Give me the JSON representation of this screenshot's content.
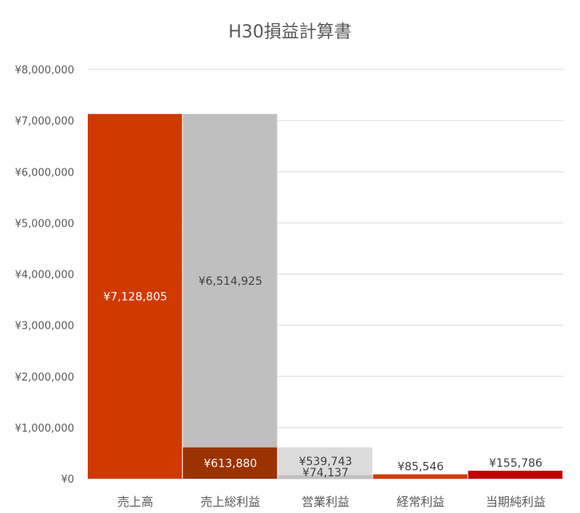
{
  "chart_data": {
    "type": "bar",
    "title": "H30損益計算書",
    "categories": [
      "売上高",
      "売上総利益",
      "営業利益",
      "経常利益",
      "当期純利益"
    ],
    "y_ticks": [
      "¥0",
      "¥1,000,000",
      "¥2,000,000",
      "¥3,000,000",
      "¥4,000,000",
      "¥5,000,000",
      "¥6,000,000",
      "¥7,000,000",
      "¥8,000,000"
    ],
    "ylim": [
      0,
      8000000
    ],
    "grid": true,
    "legend": "none",
    "stacking": "stacked",
    "segments": [
      {
        "category": "売上高",
        "value": 7128805,
        "label": "¥7,128,805",
        "color": "#d03a00",
        "label_color": "#ffffff",
        "label_pos": "center"
      },
      {
        "category": "売上総利益",
        "value": 613880,
        "label": "¥613,880",
        "color": "#9c3200",
        "label_color": "#ffffff",
        "label_pos": "center"
      },
      {
        "category": "売上総利益",
        "value": 6514925,
        "label": "¥6,514,925",
        "color": "#bfbfbf",
        "label_color": "#404040",
        "label_pos": "center"
      },
      {
        "category": "営業利益",
        "value": 74137,
        "label": "¥74,137",
        "color": "#c0c0c0",
        "label_color": "#404040",
        "label_pos": "center"
      },
      {
        "category": "営業利益",
        "value": 539743,
        "label": "¥539,743",
        "color": "#dcdcdc",
        "label_color": "#404040",
        "label_pos": "center"
      },
      {
        "category": "経常利益",
        "value": 85546,
        "label": "¥85,546",
        "color": "#d03a00",
        "label_color": "#404040",
        "label_pos": "above"
      },
      {
        "category": "当期純利益",
        "value": 155786,
        "label": "¥155,786",
        "color": "#c00000",
        "label_color": "#404040",
        "label_pos": "above"
      }
    ]
  }
}
